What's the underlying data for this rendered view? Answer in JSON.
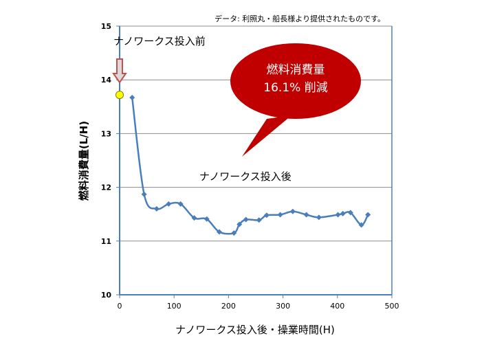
{
  "chart_data": {
    "type": "line",
    "source_note": "データ: 利照丸・船長様より提供されたものです。",
    "xlabel": "ナノワークス投入後・操業時間(H)",
    "ylabel": "燃料消費量(L/H)",
    "xlim": [
      0,
      500
    ],
    "ylim": [
      10,
      15
    ],
    "x_ticks": [
      "0",
      "100",
      "200",
      "300",
      "400",
      "500"
    ],
    "y_ticks": [
      "10",
      "11",
      "12",
      "13",
      "14",
      "15"
    ],
    "grid": true,
    "series": [
      {
        "values": [
          [
            23,
            13.67
          ],
          [
            45,
            11.87
          ],
          [
            68,
            11.6
          ],
          [
            90,
            11.69
          ],
          [
            112,
            11.69
          ],
          [
            137,
            11.43
          ],
          [
            160,
            11.41
          ],
          [
            183,
            11.17
          ],
          [
            210,
            11.15
          ],
          [
            220,
            11.31
          ],
          [
            232,
            11.4
          ],
          [
            256,
            11.39
          ],
          [
            270,
            11.48
          ],
          [
            295,
            11.49
          ],
          [
            318,
            11.55
          ],
          [
            343,
            11.49
          ],
          [
            366,
            11.44
          ],
          [
            401,
            11.49
          ],
          [
            410,
            11.51
          ],
          [
            424,
            11.53
          ],
          [
            444,
            11.3
          ],
          [
            456,
            11.49
          ]
        ],
        "color": "#4a7ebb"
      }
    ],
    "before_point": {
      "x": 0,
      "y": 13.72,
      "color": "#ffff00"
    },
    "annotations": {
      "before_label": "ナノワークス投入前",
      "after_label": "ナノワークス投入後",
      "callout_line1": "燃料消費量",
      "callout_line2": "16.1% 削減"
    },
    "colors": {
      "callout_fill": "#c00000",
      "arrow_stroke": "#c0504d",
      "axis": "#4a7ebb",
      "grid": "#8c8c8c"
    }
  }
}
